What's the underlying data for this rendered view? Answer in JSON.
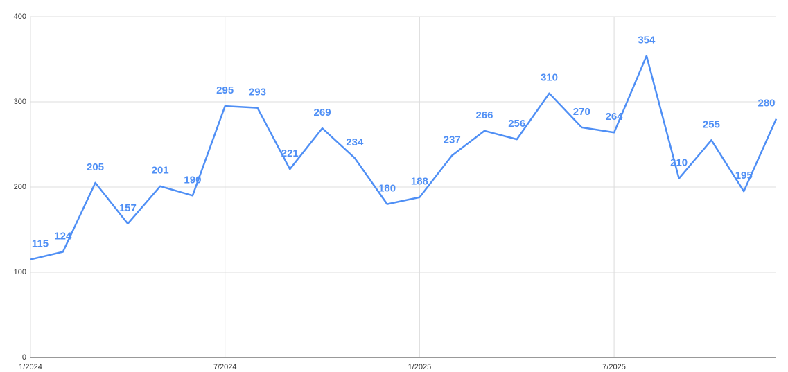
{
  "chart_data": {
    "type": "line",
    "categories": [
      "1/2024",
      null,
      null,
      null,
      null,
      null,
      "7/2024",
      null,
      null,
      null,
      null,
      null,
      "1/2025",
      null,
      null,
      null,
      null,
      null,
      "7/2025",
      null,
      null,
      null,
      null,
      null
    ],
    "values": [
      115,
      124,
      205,
      157,
      201,
      190,
      295,
      293,
      221,
      269,
      234,
      180,
      188,
      237,
      266,
      256,
      310,
      270,
      264,
      354,
      210,
      255,
      195,
      280
    ],
    "color": "#4f8ff5",
    "ylim": [
      0,
      400
    ],
    "yticks": [
      0,
      100,
      200,
      300,
      400
    ],
    "grid": true
  }
}
